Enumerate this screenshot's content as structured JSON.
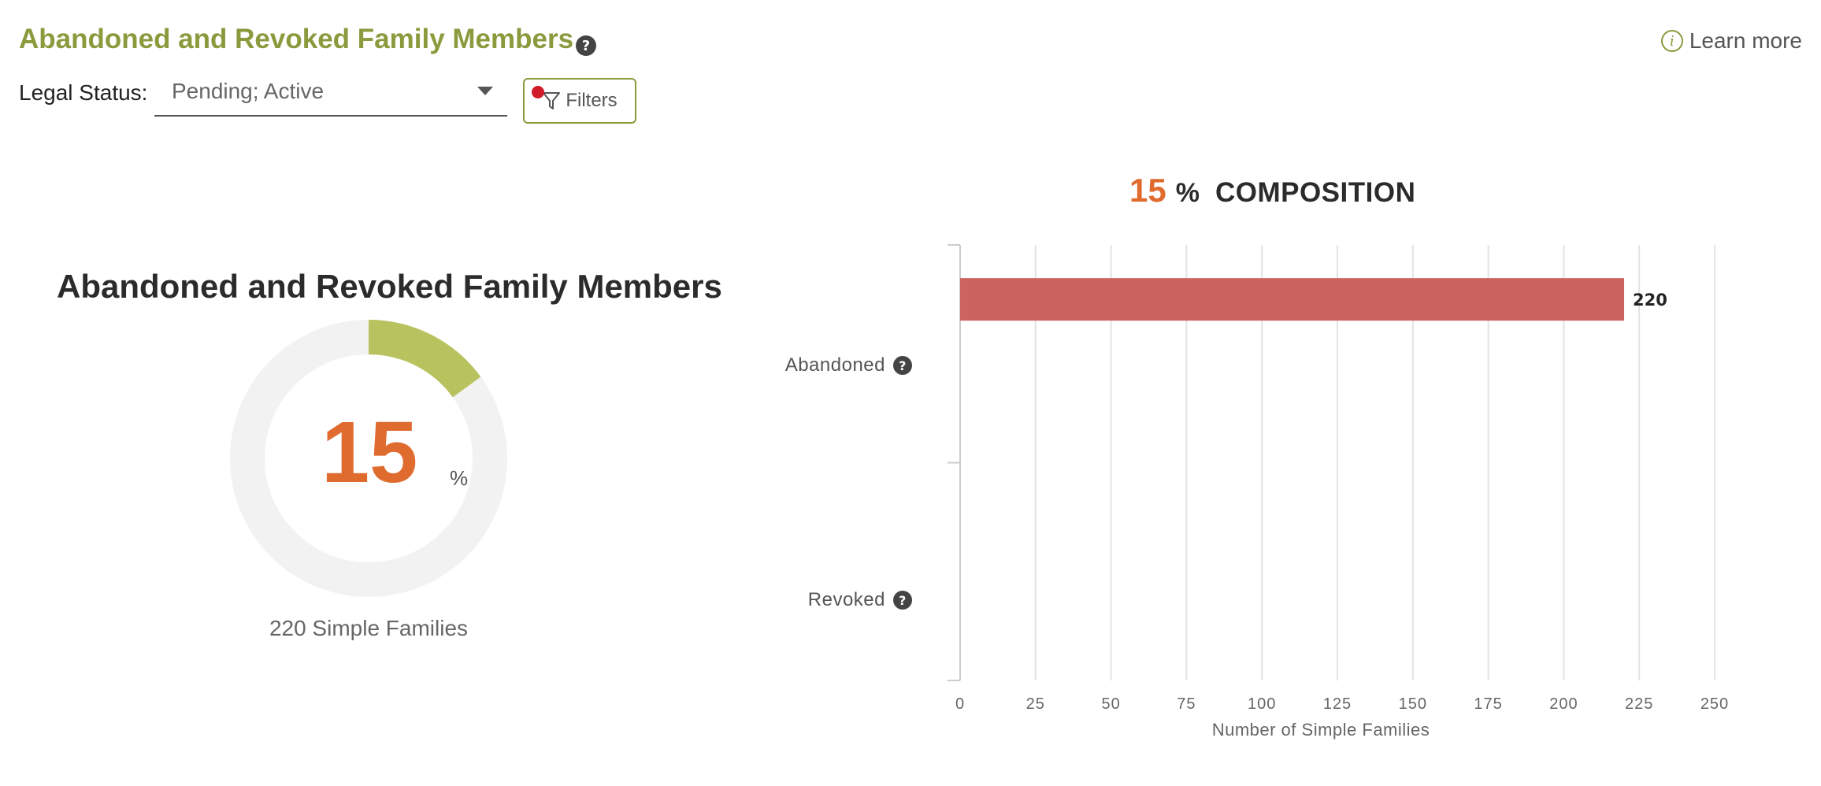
{
  "header": {
    "title": "Abandoned and Revoked Family Members",
    "help_icon": "?",
    "learn_more_icon": "i",
    "learn_more": "Learn more"
  },
  "filter_bar": {
    "legal_status_label": "Legal Status:",
    "legal_status_value": "Pending; Active",
    "filters_label": "Filters"
  },
  "donut": {
    "title": "Abandoned and Revoked Family Members",
    "value": "15",
    "unit": "%",
    "fraction": 0.15,
    "caption": "220 Simple Families"
  },
  "composition": {
    "value": "15",
    "unit": "%",
    "label": "COMPOSITION"
  },
  "colors": {
    "accent": "#8b9a3d",
    "donut_fill": "#b8c25e",
    "donut_track": "#f2f2f2",
    "highlight": "#e06b2f",
    "bar": "#cd6361",
    "filter_dot": "#d11a2a"
  },
  "chart_data": {
    "type": "bar",
    "orientation": "horizontal",
    "categories": [
      "Abandoned",
      "Revoked"
    ],
    "values": [
      220,
      0
    ],
    "data_labels": [
      "220",
      ""
    ],
    "xlabel": "Number of Simple Families",
    "xlim": [
      0,
      250
    ],
    "xticks": [
      "0",
      "25",
      "50",
      "75",
      "100",
      "125",
      "150",
      "175",
      "200",
      "225",
      "250"
    ],
    "grid": true
  }
}
